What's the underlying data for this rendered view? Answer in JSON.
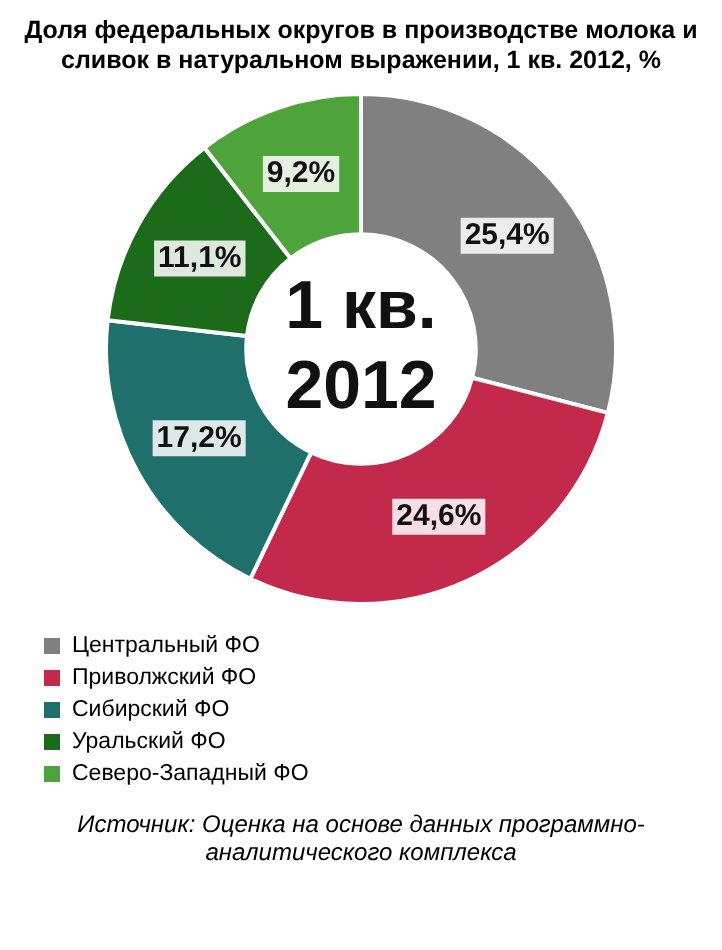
{
  "chart_data": {
    "type": "donut",
    "title": "Доля федеральных округов в производстве молока и сливок в натуральном выражении, 1 кв. 2012, %",
    "categories": [
      "Центральный ФО",
      "Приволжский ФО",
      "Сибирский ФО",
      "Уральский ФО",
      "Северо-Западный ФО"
    ],
    "values": [
      25.4,
      24.6,
      17.2,
      11.1,
      9.2
    ],
    "colors": [
      "#808080",
      "#c3294a",
      "#1f6f6b",
      "#1b6b1b",
      "#4ea43a"
    ],
    "value_labels": [
      "25,4%",
      "24,6%",
      "17,2%",
      "11,1%",
      "9,2%"
    ],
    "legend": "bottom left",
    "annotations": [
      "1 кв. 2012",
      "Источник: Оценка на основе данных программно-аналитического комплекса"
    ]
  }
}
